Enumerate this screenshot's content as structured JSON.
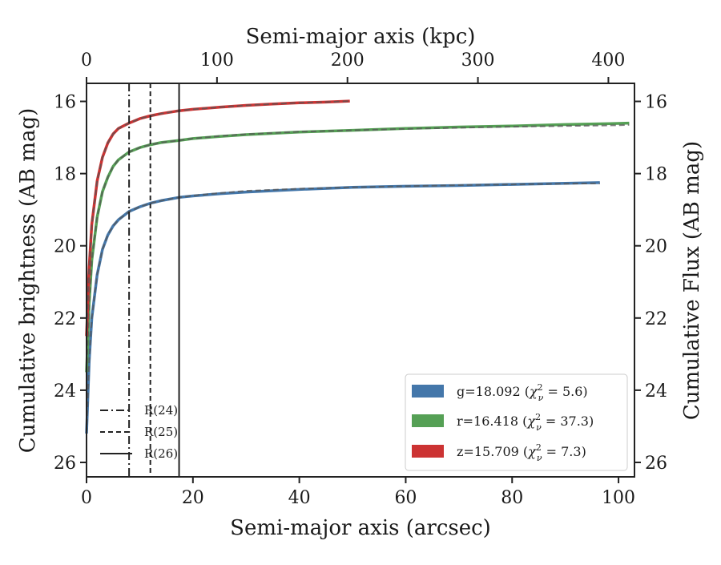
{
  "chart_data": {
    "type": "line",
    "xlabel": "Semi-major axis (arcsec)",
    "ylabel": "Cumulative brightness (AB mag)",
    "x2label": "Semi-major axis (kpc)",
    "y2label": "Cumulative Flux (AB mag)",
    "xlim": [
      0,
      103
    ],
    "ylim": [
      26.4,
      15.5
    ],
    "x2lim": [
      0,
      420
    ],
    "xticks": [
      "0",
      "20",
      "40",
      "60",
      "80",
      "100"
    ],
    "xtick_values": [
      0,
      20,
      40,
      60,
      80,
      100
    ],
    "yticks": [
      "16",
      "18",
      "20",
      "22",
      "24",
      "26"
    ],
    "ytick_values": [
      16,
      18,
      20,
      22,
      24,
      26
    ],
    "x2ticks": [
      "0",
      "100",
      "200",
      "300",
      "400"
    ],
    "x2tick_values": [
      0,
      100,
      200,
      300,
      400
    ],
    "series": [
      {
        "name": "g",
        "color": "#4477aa",
        "label_text": "g=18.092 (",
        "chi_value": " = 5.6)",
        "x": [
          0,
          0.5,
          1,
          2,
          3,
          4,
          5,
          6,
          8,
          10,
          12,
          14,
          17.4,
          20,
          25,
          30,
          40,
          50,
          60,
          70,
          80,
          90,
          96.5
        ],
        "y": [
          25.2,
          23.2,
          22.0,
          20.8,
          20.1,
          19.7,
          19.45,
          19.28,
          19.05,
          18.92,
          18.82,
          18.75,
          18.66,
          18.62,
          18.56,
          18.51,
          18.44,
          18.38,
          18.35,
          18.33,
          18.3,
          18.27,
          18.25
        ],
        "model_y": [
          25.2,
          23.2,
          22.0,
          20.8,
          20.1,
          19.7,
          19.45,
          19.28,
          19.05,
          18.92,
          18.82,
          18.75,
          18.66,
          18.61,
          18.54,
          18.48,
          18.42,
          18.38,
          18.35,
          18.32,
          18.3,
          18.28,
          18.27
        ]
      },
      {
        "name": "r",
        "color": "#55a055",
        "label_text": "r=16.418 (",
        "chi_value": " = 37.3)",
        "x": [
          0,
          0.5,
          1,
          2,
          3,
          4,
          5,
          6,
          8,
          10,
          12,
          14,
          17.4,
          20,
          25,
          30,
          40,
          50,
          60,
          70,
          80,
          90,
          100,
          102
        ],
        "y": [
          23.5,
          21.6,
          20.4,
          19.2,
          18.5,
          18.1,
          17.8,
          17.62,
          17.4,
          17.28,
          17.2,
          17.14,
          17.08,
          17.03,
          16.97,
          16.92,
          16.85,
          16.8,
          16.75,
          16.71,
          16.68,
          16.64,
          16.61,
          16.6
        ],
        "model_y": [
          23.5,
          21.6,
          20.4,
          19.2,
          18.5,
          18.1,
          17.8,
          17.62,
          17.4,
          17.28,
          17.2,
          17.14,
          17.08,
          17.03,
          16.96,
          16.91,
          16.84,
          16.8,
          16.76,
          16.73,
          16.7,
          16.68,
          16.66,
          16.65
        ]
      },
      {
        "name": "z",
        "color": "#cc3333",
        "label_text": "z=15.709 (",
        "chi_value": " = 7.3)",
        "x": [
          0,
          0.5,
          1,
          2,
          3,
          4,
          5,
          6,
          8,
          10,
          12,
          14,
          17.4,
          20,
          25,
          30,
          35,
          40,
          45,
          49.5
        ],
        "y": [
          22.5,
          20.6,
          19.4,
          18.2,
          17.55,
          17.15,
          16.9,
          16.75,
          16.6,
          16.48,
          16.4,
          16.34,
          16.26,
          16.22,
          16.16,
          16.11,
          16.07,
          16.04,
          16.02,
          15.99
        ],
        "model_y": [
          22.5,
          20.6,
          19.4,
          18.2,
          17.55,
          17.15,
          16.9,
          16.75,
          16.6,
          16.48,
          16.4,
          16.34,
          16.26,
          16.22,
          16.16,
          16.11,
          16.07,
          16.04,
          16.02,
          15.99
        ]
      }
    ],
    "vlines": [
      {
        "label": "R(24)",
        "x": 8.0,
        "style": "dashdot"
      },
      {
        "label": "R(25)",
        "x": 12.0,
        "style": "dashed"
      },
      {
        "label": "R(26)",
        "x": 17.4,
        "style": "solid"
      }
    ],
    "legend_position": "lower-right",
    "vline_legend_position": "lower-left"
  },
  "legend": {
    "chi_symbol": "χ",
    "chi_sub": "ν",
    "chi_sup": "2"
  }
}
